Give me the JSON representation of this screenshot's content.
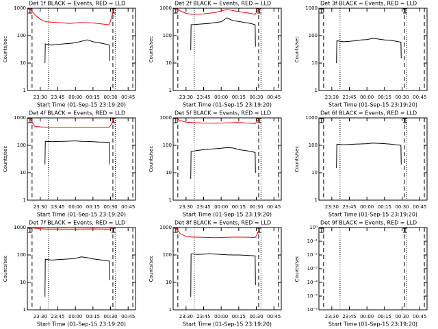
{
  "chart_data": [
    {
      "type": "line",
      "title": "Det 1f BLACK = Events, RED = LLD",
      "ylabel": "Counts/sec",
      "xlabel": "Start Time (01-Sep-15 23:19:20)",
      "log_y": true,
      "xlim": [
        19,
        111.3
      ],
      "ylim": [
        1,
        1000
      ],
      "yticks": [
        1,
        10,
        100,
        1000
      ],
      "xticks": [
        {
          "value": 30,
          "label": "23:30"
        },
        {
          "value": 45,
          "label": "23:45"
        },
        {
          "value": 60,
          "label": "00:00"
        },
        {
          "value": 75,
          "label": "00:15"
        },
        {
          "value": 90,
          "label": "00:30"
        },
        {
          "value": 105,
          "label": "00:45"
        }
      ],
      "vlines": [
        {
          "x": 23,
          "style": "dashed"
        },
        {
          "x": 37,
          "style": "dotted"
        },
        {
          "x": 92,
          "style": "dashed"
        },
        {
          "x": 94,
          "style": "dotted"
        },
        {
          "x": 109,
          "style": "dashed"
        }
      ],
      "series": [
        {
          "color": "#000000",
          "x": [
            34,
            34.3,
            40,
            45,
            50,
            55,
            60,
            65,
            70,
            75,
            80,
            85,
            89,
            89.3
          ],
          "values": [
            10,
            50,
            45,
            48,
            50,
            52,
            55,
            62,
            70,
            60,
            55,
            50,
            45,
            12
          ]
        },
        {
          "color": "#ff0000",
          "x": [
            21,
            25,
            30,
            35,
            45,
            55,
            65,
            75,
            85,
            89,
            91,
            93
          ],
          "values": [
            1000,
            600,
            400,
            320,
            300,
            280,
            300,
            290,
            260,
            250,
            500,
            1000
          ]
        }
      ]
    },
    {
      "type": "line",
      "title": "Det 2f BLACK = Events, RED = LLD",
      "ylabel": "Counts/sec",
      "xlabel": "Start Time (01-Sep-15 23:19:20)",
      "log_y": true,
      "xlim": [
        19,
        111.3
      ],
      "ylim": [
        1,
        1000
      ],
      "yticks": [
        1,
        10,
        100,
        1000
      ],
      "xticks": [
        {
          "value": 30,
          "label": "23:30"
        },
        {
          "value": 45,
          "label": "23:45"
        },
        {
          "value": 60,
          "label": "00:00"
        },
        {
          "value": 75,
          "label": "00:15"
        },
        {
          "value": 90,
          "label": "00:30"
        },
        {
          "value": 105,
          "label": "00:45"
        }
      ],
      "vlines": [
        {
          "x": 23,
          "style": "dashed"
        },
        {
          "x": 37,
          "style": "dotted"
        },
        {
          "x": 92,
          "style": "dashed"
        },
        {
          "x": 94,
          "style": "dotted"
        },
        {
          "x": 109,
          "style": "dashed"
        }
      ],
      "series": [
        {
          "color": "#000000",
          "x": [
            34,
            34.3,
            40,
            45,
            50,
            55,
            60,
            65,
            70,
            75,
            80,
            85,
            89,
            89.3
          ],
          "values": [
            30,
            250,
            260,
            270,
            280,
            300,
            320,
            450,
            350,
            330,
            300,
            280,
            250,
            40
          ]
        },
        {
          "color": "#ff0000",
          "x": [
            21,
            25,
            30,
            35,
            45,
            55,
            65,
            75,
            85,
            89,
            91,
            93
          ],
          "values": [
            1000,
            800,
            650,
            600,
            620,
            700,
            900,
            750,
            650,
            600,
            800,
            1000
          ]
        }
      ]
    },
    {
      "type": "line",
      "title": "Det 3f BLACK = Events, RED = LLD",
      "ylabel": "Counts/sec",
      "xlabel": "Start Time (01-Sep-15 23:19:20)",
      "log_y": true,
      "xlim": [
        19,
        111.3
      ],
      "ylim": [
        1,
        1000
      ],
      "yticks": [
        1,
        10,
        100,
        1000
      ],
      "xticks": [
        {
          "value": 30,
          "label": "23:30"
        },
        {
          "value": 45,
          "label": "23:45"
        },
        {
          "value": 60,
          "label": "00:00"
        },
        {
          "value": 75,
          "label": "00:15"
        },
        {
          "value": 90,
          "label": "00:30"
        },
        {
          "value": 105,
          "label": "00:45"
        }
      ],
      "vlines": [
        {
          "x": 23,
          "style": "dashed"
        },
        {
          "x": 37,
          "style": "dotted"
        },
        {
          "x": 92,
          "style": "dashed"
        },
        {
          "x": 94,
          "style": "dotted"
        },
        {
          "x": 109,
          "style": "dashed"
        }
      ],
      "series": [
        {
          "color": "#000000",
          "x": [
            34,
            34.3,
            40,
            45,
            50,
            55,
            60,
            65,
            70,
            75,
            80,
            85,
            89,
            89.3
          ],
          "values": [
            10,
            65,
            60,
            62,
            65,
            70,
            72,
            80,
            75,
            70,
            68,
            62,
            58,
            15
          ]
        }
      ]
    },
    {
      "type": "line",
      "title": "Det 4f BLACK = Events, RED = LLD",
      "ylabel": "Counts/sec",
      "xlabel": "Start Time (01-Sep-15 23:19:20)",
      "log_y": true,
      "xlim": [
        19,
        111.3
      ],
      "ylim": [
        1,
        1000
      ],
      "yticks": [
        1,
        10,
        100,
        1000
      ],
      "xticks": [
        {
          "value": 30,
          "label": "23:30"
        },
        {
          "value": 45,
          "label": "23:45"
        },
        {
          "value": 60,
          "label": "00:00"
        },
        {
          "value": 75,
          "label": "00:15"
        },
        {
          "value": 90,
          "label": "00:30"
        },
        {
          "value": 105,
          "label": "00:45"
        }
      ],
      "vlines": [
        {
          "x": 23,
          "style": "dashed"
        },
        {
          "x": 37,
          "style": "dotted"
        },
        {
          "x": 92,
          "style": "dashed"
        },
        {
          "x": 94,
          "style": "dotted"
        },
        {
          "x": 109,
          "style": "dashed"
        }
      ],
      "series": [
        {
          "color": "#000000",
          "x": [
            34,
            34.3,
            40,
            45,
            50,
            55,
            60,
            65,
            70,
            75,
            80,
            85,
            89,
            89.3
          ],
          "values": [
            20,
            140,
            135,
            138,
            140,
            142,
            145,
            140,
            138,
            135,
            132,
            130,
            128,
            20
          ]
        },
        {
          "color": "#ff0000",
          "x": [
            21,
            25,
            30,
            35,
            45,
            55,
            65,
            75,
            85,
            89,
            91,
            93
          ],
          "values": [
            1000,
            500,
            470,
            460,
            460,
            460,
            460,
            460,
            460,
            460,
            600,
            1000
          ]
        }
      ]
    },
    {
      "type": "line",
      "title": "Det 5f BLACK = Events, RED = LLD",
      "ylabel": "Counts/sec",
      "xlabel": "Start Time (01-Sep-15 23:19:20)",
      "log_y": true,
      "xlim": [
        19,
        111.3
      ],
      "ylim": [
        1,
        1000
      ],
      "yticks": [
        1,
        10,
        100,
        1000
      ],
      "xticks": [
        {
          "value": 30,
          "label": "23:30"
        },
        {
          "value": 45,
          "label": "23:45"
        },
        {
          "value": 60,
          "label": "00:00"
        },
        {
          "value": 75,
          "label": "00:15"
        },
        {
          "value": 90,
          "label": "00:30"
        },
        {
          "value": 105,
          "label": "00:45"
        }
      ],
      "vlines": [
        {
          "x": 23,
          "style": "dashed"
        },
        {
          "x": 37,
          "style": "dotted"
        },
        {
          "x": 92,
          "style": "dashed"
        },
        {
          "x": 94,
          "style": "dotted"
        },
        {
          "x": 109,
          "style": "dashed"
        }
      ],
      "series": [
        {
          "color": "#000000",
          "x": [
            34,
            34.3,
            40,
            45,
            50,
            55,
            60,
            65,
            70,
            75,
            80,
            85,
            89,
            89.3
          ],
          "values": [
            6,
            60,
            65,
            70,
            72,
            75,
            78,
            82,
            80,
            70,
            65,
            60,
            55,
            10
          ]
        },
        {
          "color": "#ff0000",
          "x": [
            21,
            25,
            30,
            35,
            45,
            55,
            65,
            75,
            85,
            89,
            91,
            93
          ],
          "values": [
            1000,
            800,
            700,
            680,
            650,
            640,
            660,
            680,
            640,
            620,
            800,
            1000
          ]
        }
      ]
    },
    {
      "type": "line",
      "title": "Det 6f BLACK = Events, RED = LLD",
      "ylabel": "Counts/sec",
      "xlabel": "Start Time (01-Sep-15 23:19:20)",
      "log_y": true,
      "xlim": [
        19,
        111.3
      ],
      "ylim": [
        1,
        1000
      ],
      "yticks": [
        1,
        10,
        100,
        1000
      ],
      "xticks": [
        {
          "value": 30,
          "label": "23:30"
        },
        {
          "value": 45,
          "label": "23:45"
        },
        {
          "value": 60,
          "label": "00:00"
        },
        {
          "value": 75,
          "label": "00:15"
        },
        {
          "value": 90,
          "label": "00:30"
        },
        {
          "value": 105,
          "label": "00:45"
        }
      ],
      "vlines": [
        {
          "x": 23,
          "style": "dashed"
        },
        {
          "x": 37,
          "style": "dotted"
        },
        {
          "x": 92,
          "style": "dashed"
        },
        {
          "x": 94,
          "style": "dotted"
        },
        {
          "x": 109,
          "style": "dashed"
        }
      ],
      "series": [
        {
          "color": "#000000",
          "x": [
            34,
            34.3,
            40,
            45,
            50,
            55,
            60,
            65,
            70,
            75,
            80,
            85,
            89,
            89.3
          ],
          "values": [
            15,
            110,
            105,
            108,
            110,
            112,
            115,
            120,
            118,
            115,
            110,
            105,
            100,
            20
          ]
        }
      ]
    },
    {
      "type": "line",
      "title": "Det 7f BLACK = Events, RED = LLD",
      "ylabel": "Counts/sec",
      "xlabel": "Start Time (01-Sep-15 23:19:20)",
      "log_y": true,
      "xlim": [
        19,
        111.3
      ],
      "ylim": [
        1,
        1000
      ],
      "yticks": [
        1,
        10,
        100,
        1000
      ],
      "xticks": [
        {
          "value": 30,
          "label": "23:30"
        },
        {
          "value": 45,
          "label": "23:45"
        },
        {
          "value": 60,
          "label": "00:00"
        },
        {
          "value": 75,
          "label": "00:15"
        },
        {
          "value": 90,
          "label": "00:30"
        },
        {
          "value": 105,
          "label": "00:45"
        }
      ],
      "vlines": [
        {
          "x": 23,
          "style": "dashed"
        },
        {
          "x": 37,
          "style": "dotted"
        },
        {
          "x": 92,
          "style": "dashed"
        },
        {
          "x": 94,
          "style": "dotted"
        },
        {
          "x": 109,
          "style": "dashed"
        }
      ],
      "series": [
        {
          "color": "#000000",
          "x": [
            34,
            34.3,
            40,
            45,
            50,
            55,
            60,
            65,
            70,
            75,
            80,
            85,
            89,
            89.3
          ],
          "values": [
            3,
            70,
            65,
            68,
            70,
            72,
            75,
            85,
            80,
            72,
            68,
            62,
            60,
            12
          ]
        },
        {
          "color": "#ff0000",
          "x": [
            21,
            25,
            30,
            35,
            45,
            55,
            65,
            75,
            85,
            89,
            91,
            93
          ],
          "values": [
            1000,
            950,
            900,
            880,
            880,
            870,
            880,
            890,
            880,
            870,
            950,
            1000
          ]
        }
      ]
    },
    {
      "type": "line",
      "title": "Det 8f BLACK = Events, RED = LLD",
      "ylabel": "Counts/sec",
      "xlabel": "Start Time (01-Sep-15 23:19:20)",
      "log_y": true,
      "xlim": [
        19,
        111.3
      ],
      "ylim": [
        1,
        1000
      ],
      "yticks": [
        1,
        10,
        100,
        1000
      ],
      "xticks": [
        {
          "value": 30,
          "label": "23:30"
        },
        {
          "value": 45,
          "label": "23:45"
        },
        {
          "value": 60,
          "label": "00:00"
        },
        {
          "value": 75,
          "label": "00:15"
        },
        {
          "value": 90,
          "label": "00:30"
        },
        {
          "value": 105,
          "label": "00:45"
        }
      ],
      "vlines": [
        {
          "x": 23,
          "style": "dashed"
        },
        {
          "x": 37,
          "style": "dotted"
        },
        {
          "x": 92,
          "style": "dashed"
        },
        {
          "x": 94,
          "style": "dotted"
        },
        {
          "x": 109,
          "style": "dashed"
        }
      ],
      "series": [
        {
          "color": "#000000",
          "x": [
            34,
            34.3,
            40,
            45,
            50,
            55,
            60,
            65,
            70,
            75,
            80,
            85,
            89,
            89.3
          ],
          "values": [
            3,
            110,
            105,
            108,
            110,
            108,
            105,
            102,
            100,
            100,
            98,
            95,
            92,
            8
          ]
        },
        {
          "color": "#ff0000",
          "x": [
            21,
            25,
            30,
            35,
            45,
            55,
            65,
            75,
            85,
            89,
            91,
            93
          ],
          "values": [
            1000,
            600,
            480,
            450,
            440,
            430,
            440,
            450,
            440,
            430,
            600,
            1000
          ]
        }
      ]
    },
    {
      "type": "line",
      "title": "Det 9f BLACK = Events, RED = LLD",
      "ylabel": "Counts/sec",
      "xlabel": "Start Time (01-Sep-15 23:19:20)",
      "log_y": true,
      "xlim": [
        19,
        111.3
      ],
      "ylim": [
        1e-06,
        1
      ],
      "yticks": [
        {
          "value": 1e-06,
          "label": "10⁻⁶"
        },
        {
          "value": 1e-05,
          "label": "10⁻⁵"
        },
        {
          "value": 0.0001,
          "label": "10⁻⁴"
        },
        {
          "value": 0.001,
          "label": "10⁻³"
        },
        {
          "value": 0.01,
          "label": "10⁻²"
        },
        {
          "value": 0.1,
          "label": "10⁻¹"
        },
        {
          "value": 1,
          "label": "10⁰"
        }
      ],
      "xticks": [
        {
          "value": 30,
          "label": "23:30"
        },
        {
          "value": 45,
          "label": "23:45"
        },
        {
          "value": 60,
          "label": "00:00"
        },
        {
          "value": 75,
          "label": "00:15"
        },
        {
          "value": 90,
          "label": "00:30"
        },
        {
          "value": 105,
          "label": "00:45"
        }
      ],
      "vlines": [
        {
          "x": 23,
          "style": "dashed"
        },
        {
          "x": 37,
          "style": "dotted"
        },
        {
          "x": 92,
          "style": "dashed"
        },
        {
          "x": 94,
          "style": "dotted"
        },
        {
          "x": 109,
          "style": "dashed"
        }
      ],
      "series": []
    }
  ]
}
